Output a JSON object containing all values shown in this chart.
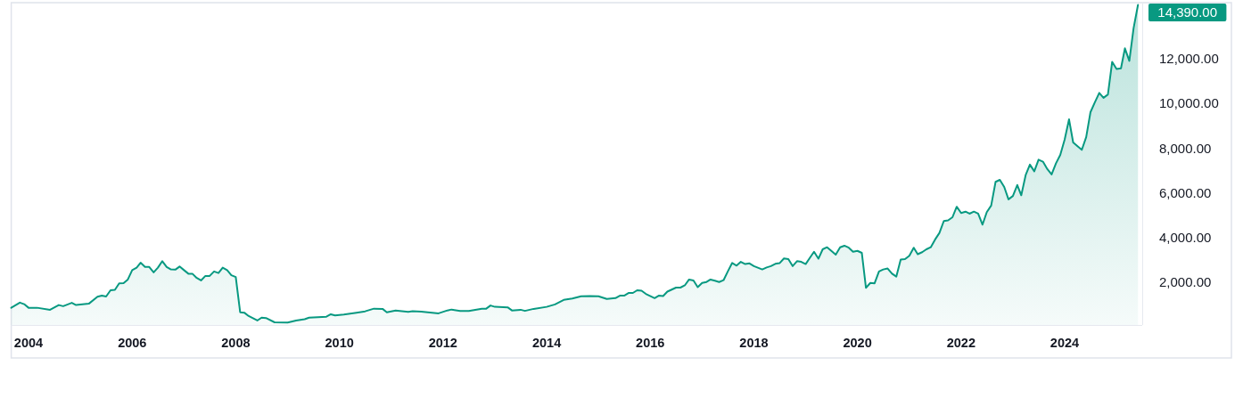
{
  "chart_data": {
    "type": "area",
    "color": "#089981",
    "x": [
      "2003-09",
      "2003-11",
      "2003-12",
      "2004-01",
      "2004-03",
      "2004-06",
      "2004-08",
      "2004-09",
      "2004-11",
      "2004-12",
      "2005-03",
      "2005-05",
      "2005-06",
      "2005-07",
      "2005-08",
      "2005-09",
      "2005-10",
      "2005-11",
      "2005-12",
      "2006-01",
      "2006-02",
      "2006-03",
      "2006-04",
      "2006-05",
      "2006-06",
      "2006-07",
      "2006-08",
      "2006-09",
      "2006-10",
      "2006-11",
      "2006-12",
      "2007-01",
      "2007-02",
      "2007-03",
      "2007-04",
      "2007-05",
      "2007-06",
      "2007-07",
      "2007-08",
      "2007-09",
      "2007-10",
      "2007-11",
      "2007-12",
      "2008-01",
      "2008-02",
      "2008-03",
      "2008-04",
      "2008-06",
      "2008-07",
      "2008-08",
      "2008-10",
      "2009-01",
      "2009-03",
      "2009-05",
      "2009-06",
      "2009-09",
      "2009-10",
      "2009-11",
      "2009-12",
      "2010-02",
      "2010-05",
      "2010-07",
      "2010-09",
      "2010-11",
      "2010-12",
      "2011-02",
      "2011-05",
      "2011-06",
      "2011-08",
      "2011-12",
      "2012-02",
      "2012-03",
      "2012-05",
      "2012-07",
      "2012-10",
      "2012-11",
      "2012-12",
      "2013-01",
      "2013-04",
      "2013-05",
      "2013-07",
      "2013-08",
      "2013-10",
      "2014-01",
      "2014-03",
      "2014-05",
      "2014-07",
      "2014-09",
      "2014-11",
      "2015-01",
      "2015-03",
      "2015-05",
      "2015-06",
      "2015-07",
      "2015-08",
      "2015-09",
      "2015-10",
      "2015-11",
      "2015-12",
      "2016-02",
      "2016-03",
      "2016-04",
      "2016-05",
      "2016-07",
      "2016-08",
      "2016-09",
      "2016-10",
      "2016-11",
      "2016-12",
      "2017-01",
      "2017-02",
      "2017-03",
      "2017-04",
      "2017-05",
      "2017-06",
      "2017-07",
      "2017-08",
      "2017-09",
      "2017-10",
      "2017-11",
      "2017-12",
      "2018-01",
      "2018-03",
      "2018-04",
      "2018-05",
      "2018-06",
      "2018-07",
      "2018-08",
      "2018-09",
      "2018-10",
      "2018-11",
      "2018-12",
      "2019-01",
      "2019-02",
      "2019-03",
      "2019-04",
      "2019-05",
      "2019-06",
      "2019-07",
      "2019-08",
      "2019-09",
      "2019-10",
      "2019-11",
      "2019-12",
      "2020-01",
      "2020-02",
      "2020-03",
      "2020-04",
      "2020-05",
      "2020-06",
      "2020-07",
      "2020-08",
      "2020-09",
      "2020-10",
      "2020-11",
      "2020-12",
      "2021-01",
      "2021-02",
      "2021-03",
      "2021-04",
      "2021-05",
      "2021-06",
      "2021-07",
      "2021-08",
      "2021-09",
      "2021-10",
      "2021-11",
      "2021-12",
      "2022-01",
      "2022-02",
      "2022-03",
      "2022-04",
      "2022-05",
      "2022-06",
      "2022-07",
      "2022-08",
      "2022-09",
      "2022-10",
      "2022-11",
      "2022-12",
      "2023-01",
      "2023-02",
      "2023-03",
      "2023-04",
      "2023-05",
      "2023-06",
      "2023-07",
      "2023-08",
      "2023-09",
      "2023-10",
      "2023-11",
      "2023-12",
      "2024-01",
      "2024-02",
      "2024-03",
      "2024-04",
      "2024-05",
      "2024-06",
      "2024-07",
      "2024-08",
      "2024-09",
      "2024-10",
      "2024-11",
      "2024-12",
      "2025-01",
      "2025-02",
      "2025-03",
      "2025-04",
      "2025-05",
      "2025-06"
    ],
    "values": [
      870,
      1100,
      1030,
      870,
      870,
      780,
      990,
      940,
      1090,
      990,
      1050,
      1360,
      1410,
      1370,
      1650,
      1670,
      1960,
      1970,
      2130,
      2550,
      2660,
      2880,
      2690,
      2690,
      2450,
      2660,
      2950,
      2690,
      2580,
      2570,
      2710,
      2550,
      2390,
      2390,
      2200,
      2090,
      2290,
      2290,
      2490,
      2420,
      2660,
      2550,
      2320,
      2240,
      670,
      650,
      500,
      300,
      430,
      410,
      220,
      210,
      300,
      360,
      430,
      460,
      470,
      580,
      530,
      570,
      650,
      710,
      830,
      820,
      670,
      750,
      690,
      720,
      700,
      620,
      750,
      790,
      730,
      730,
      830,
      830,
      970,
      910,
      890,
      750,
      780,
      730,
      820,
      910,
      1020,
      1220,
      1280,
      1380,
      1390,
      1380,
      1260,
      1300,
      1410,
      1410,
      1530,
      1530,
      1650,
      1630,
      1490,
      1300,
      1410,
      1390,
      1590,
      1770,
      1770,
      1870,
      2130,
      2090,
      1790,
      1980,
      2020,
      2130,
      2080,
      2020,
      2100,
      2490,
      2870,
      2750,
      2920,
      2820,
      2850,
      2730,
      2580,
      2670,
      2730,
      2830,
      2860,
      3070,
      3040,
      2730,
      2950,
      2920,
      2820,
      3110,
      3370,
      3060,
      3480,
      3570,
      3410,
      3240,
      3570,
      3640,
      3550,
      3370,
      3410,
      3320,
      1760,
      1980,
      1960,
      2490,
      2580,
      2620,
      2390,
      2260,
      3020,
      3040,
      3190,
      3550,
      3260,
      3350,
      3480,
      3570,
      3910,
      4210,
      4740,
      4770,
      4910,
      5380,
      5100,
      5160,
      5070,
      5160,
      5070,
      4580,
      5140,
      5430,
      6490,
      6580,
      6260,
      5710,
      5860,
      6350,
      5890,
      6790,
      7260,
      6960,
      7480,
      7390,
      7060,
      6820,
      7320,
      7690,
      8380,
      9280,
      8250,
      8080,
      7920,
      8490,
      9600,
      10040,
      10460,
      10240,
      10390,
      11850,
      11530,
      11560,
      12450,
      11890,
      13350,
      14390
    ],
    "value_labels": [
      null,
      null,
      null,
      null,
      null,
      null,
      null,
      null,
      null,
      null,
      null,
      null,
      null,
      null,
      null,
      null,
      null,
      null,
      null,
      null,
      null,
      null,
      null,
      null,
      null,
      null,
      null,
      null,
      null,
      null,
      null,
      null,
      null,
      null,
      null,
      null,
      null,
      null,
      null,
      null,
      null,
      null,
      null,
      null,
      null,
      null,
      null,
      null,
      null,
      null,
      null,
      null,
      null,
      null,
      null,
      null,
      null,
      null,
      null,
      null,
      null,
      null,
      null,
      null,
      null,
      null,
      null,
      null,
      null,
      null,
      null,
      null,
      null,
      null,
      null,
      null,
      null,
      null,
      null,
      null,
      null,
      null,
      null,
      null,
      null,
      null,
      null,
      null,
      null,
      null,
      null,
      null,
      null,
      null,
      null,
      null,
      null,
      null,
      null,
      null,
      null,
      null,
      null,
      null,
      null,
      null,
      null,
      null,
      null,
      null,
      null,
      null,
      null,
      null,
      null,
      null,
      null,
      null,
      null,
      null,
      null,
      null,
      null,
      null,
      null,
      null,
      null,
      null,
      null,
      null,
      null,
      null,
      null,
      null,
      null,
      null,
      null,
      null,
      null,
      null,
      null,
      null,
      null,
      null,
      null,
      null,
      null,
      null,
      null,
      null,
      null,
      null,
      null,
      null,
      null,
      null,
      null,
      null,
      null,
      null,
      null,
      null,
      null,
      null,
      null,
      null,
      null,
      null,
      null,
      null,
      null,
      null,
      null,
      null,
      null,
      null,
      null,
      null,
      null,
      null,
      null,
      null,
      null,
      null,
      null,
      null,
      null,
      null,
      null,
      null,
      null,
      null,
      null,
      null,
      null,
      null,
      null,
      null,
      null,
      null,
      null,
      null,
      null,
      null,
      null,
      null,
      null,
      null,
      null,
      "14,390.00"
    ],
    "xlim": [
      "2003-09",
      "2025-07"
    ],
    "xticks": [
      "2004",
      "2006",
      "2008",
      "2010",
      "2012",
      "2014",
      "2016",
      "2018",
      "2020",
      "2022",
      "2024"
    ],
    "ylim": [
      100,
      14450
    ],
    "yticks": [
      {
        "value": 2000,
        "label": "2,000.00"
      },
      {
        "value": 4000,
        "label": "4,000.00"
      },
      {
        "value": 6000,
        "label": "6,000.00"
      },
      {
        "value": 8000,
        "label": "8,000.00"
      },
      {
        "value": 10000,
        "label": "10,000.00"
      },
      {
        "value": 12000,
        "label": "12,000.00"
      }
    ]
  }
}
